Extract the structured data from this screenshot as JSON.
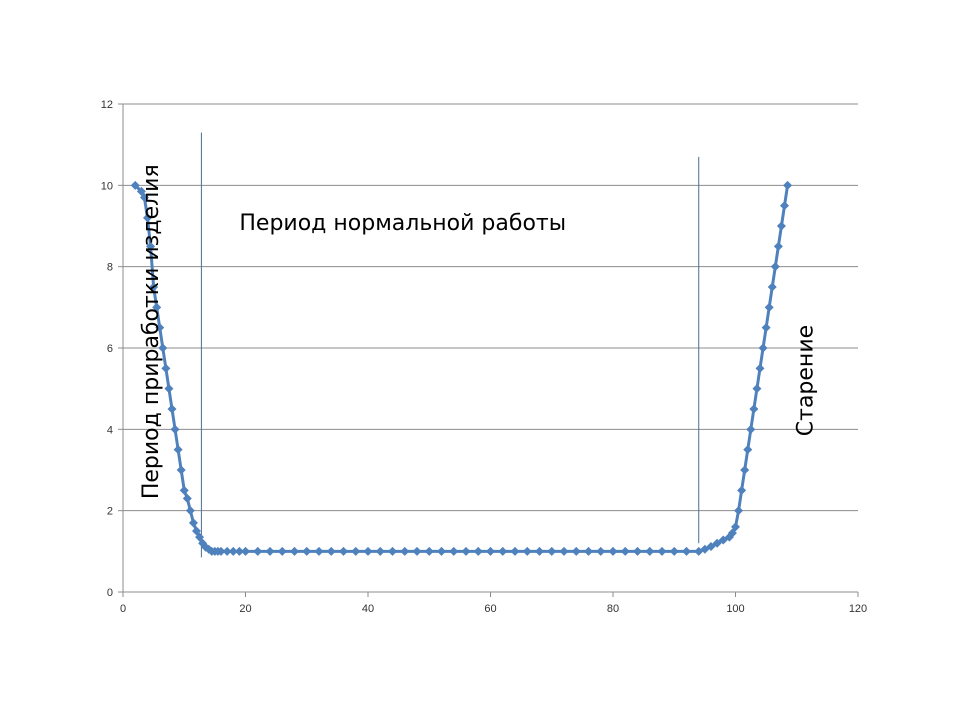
{
  "chart_data": {
    "type": "line",
    "title": "",
    "xlabel": "",
    "ylabel": "",
    "xlim": [
      0,
      120
    ],
    "ylim": [
      0,
      12
    ],
    "xticks": [
      0,
      20,
      40,
      60,
      80,
      100,
      120
    ],
    "yticks": [
      0,
      2,
      4,
      6,
      8,
      10,
      12
    ],
    "grid": "horizontal",
    "legend": "none",
    "series": [
      {
        "name": "",
        "color": "#4f81bd",
        "marker": "diamond",
        "x": [
          2,
          3,
          3.5,
          4,
          4.5,
          5,
          5.5,
          6,
          6.5,
          7,
          7.5,
          8,
          8.5,
          9,
          9.5,
          10,
          10.5,
          11,
          11.5,
          12,
          12.5,
          13,
          13.5,
          14,
          14.5,
          15,
          15.5,
          16,
          17,
          18,
          19,
          20,
          22,
          24,
          26,
          28,
          30,
          32,
          34,
          36,
          38,
          40,
          42,
          44,
          46,
          48,
          50,
          52,
          54,
          56,
          58,
          60,
          62,
          64,
          66,
          68,
          70,
          72,
          74,
          76,
          78,
          80,
          82,
          84,
          86,
          88,
          90,
          92,
          94,
          95,
          96,
          97,
          98,
          99,
          99.5,
          100,
          100.5,
          101,
          101.5,
          102,
          102.5,
          103,
          103.5,
          104,
          104.5,
          105,
          105.5,
          106,
          106.5,
          107,
          107.5,
          108,
          108.5
        ],
        "y": [
          10,
          9.85,
          9.7,
          9.2,
          8.5,
          7.5,
          7,
          6.5,
          6,
          5.5,
          5,
          4.5,
          4,
          3.5,
          3,
          2.5,
          2.3,
          2,
          1.7,
          1.5,
          1.35,
          1.2,
          1.1,
          1.05,
          1,
          1,
          1,
          1,
          1,
          1,
          1,
          1,
          1,
          1,
          1,
          1,
          1,
          1,
          1,
          1,
          1,
          1,
          1,
          1,
          1,
          1,
          1,
          1,
          1,
          1,
          1,
          1,
          1,
          1,
          1,
          1,
          1,
          1,
          1,
          1,
          1,
          1,
          1,
          1,
          1,
          1,
          1,
          1,
          1,
          1.05,
          1.12,
          1.2,
          1.28,
          1.35,
          1.45,
          1.6,
          2,
          2.5,
          3,
          3.5,
          4,
          4.5,
          5,
          5.5,
          6,
          6.5,
          7,
          7.5,
          8,
          8.5,
          9,
          9.5,
          10
        ]
      }
    ],
    "vlines": [
      {
        "x": 12.8,
        "y_from": 0.85,
        "y_to": 11.3,
        "color": "#4a6f94"
      },
      {
        "x": 94,
        "y_from": 1.2,
        "y_to": 10.7,
        "color": "#4a6f94"
      }
    ],
    "annotations": [
      {
        "text": "Период нормальной работы",
        "x": 19,
        "y": 8.9,
        "rotation": 0
      },
      {
        "text": "Период приработки изделия",
        "x": 5.7,
        "y": 6.4,
        "rotation": -90
      },
      {
        "text": "Старение",
        "x": 112.6,
        "y": 5.2,
        "rotation": -90
      }
    ]
  }
}
